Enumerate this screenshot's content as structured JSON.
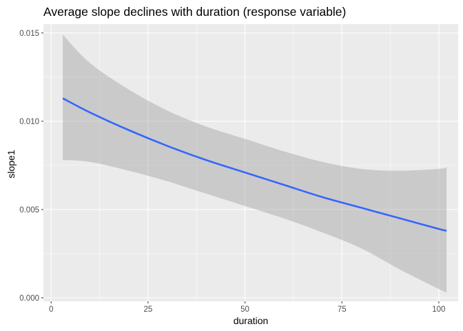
{
  "chart_data": {
    "type": "line",
    "title": "Average slope declines with duration (response variable)",
    "xlabel": "duration",
    "ylabel": "slope1",
    "xlim": [
      -2,
      105
    ],
    "ylim": [
      -0.0002,
      0.0155
    ],
    "x_ticks": [
      {
        "value": 0,
        "label": "0"
      },
      {
        "value": 25,
        "label": "25"
      },
      {
        "value": 50,
        "label": "50"
      },
      {
        "value": 75,
        "label": "75"
      },
      {
        "value": 100,
        "label": "100"
      }
    ],
    "y_ticks": [
      {
        "value": 0,
        "label": "0.000"
      },
      {
        "value": 0.005,
        "label": "0.005"
      },
      {
        "value": 0.01,
        "label": "0.010"
      },
      {
        "value": 0.015,
        "label": "0.015"
      }
    ],
    "grid": true,
    "background": "#EBEBEB",
    "line_color": "#3366FF",
    "ribbon_color": "#999999",
    "series": [
      {
        "x": [
          3,
          10,
          20,
          30,
          40,
          50,
          60,
          70,
          80,
          90,
          100,
          102
        ],
        "y": [
          0.0113,
          0.0105,
          0.0095,
          0.0086,
          0.0078,
          0.0071,
          0.0064,
          0.0057,
          0.0051,
          0.0045,
          0.0039,
          0.0038
        ],
        "lower": [
          0.0078,
          0.0077,
          0.0072,
          0.0066,
          0.0059,
          0.0052,
          0.0045,
          0.0037,
          0.0028,
          0.0016,
          0.0005,
          0.0003
        ],
        "upper": [
          0.0149,
          0.0133,
          0.0118,
          0.0106,
          0.0097,
          0.009,
          0.0083,
          0.0077,
          0.0073,
          0.0072,
          0.0073,
          0.0074
        ]
      }
    ]
  }
}
